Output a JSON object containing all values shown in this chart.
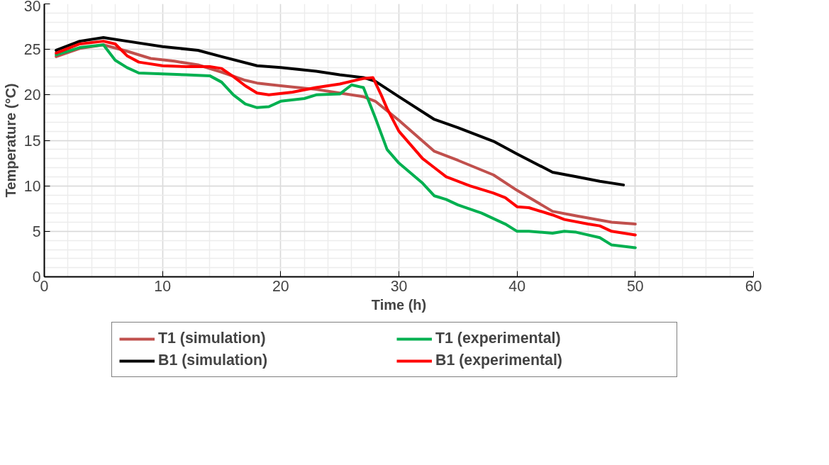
{
  "chart_data": {
    "type": "line",
    "xlabel": "Time (h)",
    "ylabel": "Temperature (°C)",
    "xlim": [
      0,
      60
    ],
    "xticks": [
      0,
      10,
      20,
      30,
      40,
      50,
      60
    ],
    "ylim": [
      0,
      30
    ],
    "yticks": [
      0,
      5,
      10,
      15,
      20,
      25,
      30
    ],
    "grid": true,
    "legend": "bottom",
    "marker": "none",
    "line_style": "solid",
    "series": [
      {
        "name": "T1 (simulation)",
        "color": "#c0504d",
        "x": [
          1,
          3,
          5,
          7,
          9,
          11,
          13,
          15,
          17,
          18,
          20,
          23,
          25,
          27,
          28,
          30,
          33,
          35,
          38,
          40,
          43,
          45,
          48,
          50
        ],
        "values": [
          24.2,
          25.1,
          25.5,
          24.8,
          24.0,
          23.7,
          23.3,
          22.5,
          21.6,
          21.3,
          21.0,
          20.6,
          20.2,
          19.8,
          19.3,
          17.2,
          13.8,
          12.8,
          11.2,
          9.5,
          7.2,
          6.7,
          6.0,
          5.8
        ]
      },
      {
        "name": "T1 (experimental)",
        "color": "#00b050",
        "x": [
          1,
          3,
          5,
          6,
          7,
          8,
          10,
          12,
          14,
          15,
          16,
          17,
          18,
          19,
          20,
          22,
          23,
          25,
          26,
          27,
          28,
          29,
          30,
          32,
          33,
          34,
          35,
          37,
          39,
          40,
          41,
          43,
          44,
          45,
          47,
          48,
          50
        ],
        "values": [
          24.4,
          25.2,
          25.5,
          23.8,
          23.0,
          22.4,
          22.3,
          22.2,
          22.1,
          21.4,
          20.0,
          19.0,
          18.6,
          18.7,
          19.3,
          19.6,
          20.0,
          20.1,
          21.1,
          20.8,
          17.5,
          14.0,
          12.5,
          10.3,
          8.9,
          8.5,
          7.9,
          7.0,
          5.8,
          5.0,
          5.0,
          4.8,
          5.0,
          4.9,
          4.3,
          3.5,
          3.2
        ]
      },
      {
        "name": "B1 (simulation)",
        "color": "#000000",
        "x": [
          1,
          3,
          5,
          7,
          10,
          13,
          15,
          18,
          20,
          23,
          25,
          27,
          28,
          30,
          33,
          35,
          38,
          40,
          43,
          45,
          47,
          49
        ],
        "values": [
          24.9,
          25.9,
          26.3,
          25.9,
          25.3,
          24.9,
          24.2,
          23.2,
          23.0,
          22.6,
          22.2,
          21.9,
          21.5,
          19.8,
          17.3,
          16.4,
          14.9,
          13.5,
          11.5,
          11.0,
          10.5,
          10.1
        ]
      },
      {
        "name": "B1 (experimental)",
        "color": "#ff0000",
        "x": [
          1,
          3,
          5,
          6,
          7,
          8,
          10,
          12,
          14,
          15,
          16,
          17,
          18,
          19,
          21,
          23,
          25,
          27,
          27.8,
          28.5,
          29,
          30,
          32,
          33,
          34,
          36,
          38,
          39,
          40,
          41,
          43,
          44,
          46,
          47,
          48,
          50
        ],
        "values": [
          24.6,
          25.6,
          25.9,
          25.6,
          24.3,
          23.6,
          23.2,
          23.1,
          23.1,
          22.9,
          22.0,
          21.0,
          20.2,
          20.0,
          20.3,
          20.8,
          21.2,
          21.8,
          21.9,
          20.0,
          18.5,
          16.0,
          13.0,
          12.0,
          11.0,
          10.0,
          9.2,
          8.7,
          7.7,
          7.6,
          6.8,
          6.3,
          5.8,
          5.6,
          5.0,
          4.6
        ]
      }
    ]
  }
}
